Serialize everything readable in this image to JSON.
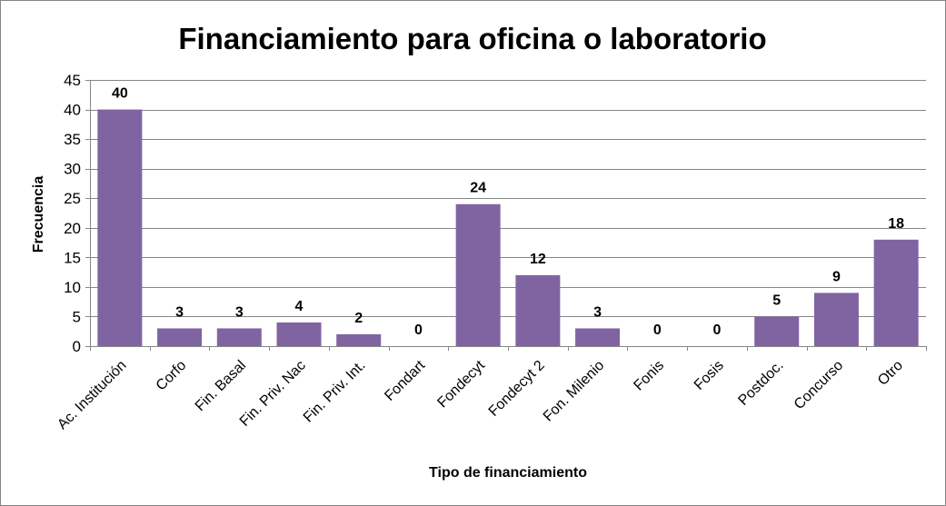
{
  "chart_data": {
    "type": "bar",
    "title": "Financiamiento para oficina o laboratorio",
    "xlabel": "Tipo de financiamiento",
    "ylabel": "Frecuencia",
    "categories": [
      "Ac. Institución",
      "Corfo",
      "Fin. Basal",
      "Fin. Priv. Nac",
      "Fin. Priv. Int.",
      "Fondart",
      "Fondecyt",
      "Fondecyt 2",
      "Fon. Milenio",
      "Fonis",
      "Fosis",
      "Postdoc.",
      "Concurso",
      "Otro"
    ],
    "values": [
      40,
      3,
      3,
      4,
      2,
      0,
      24,
      12,
      3,
      0,
      0,
      5,
      9,
      18
    ],
    "ylim": [
      0,
      45
    ],
    "yticks": [
      0,
      5,
      10,
      15,
      20,
      25,
      30,
      35,
      40,
      45
    ],
    "grid": true,
    "legend": "none",
    "colors": {
      "bar": "#8064A2",
      "grid": "#868686",
      "border": "#868686"
    }
  }
}
